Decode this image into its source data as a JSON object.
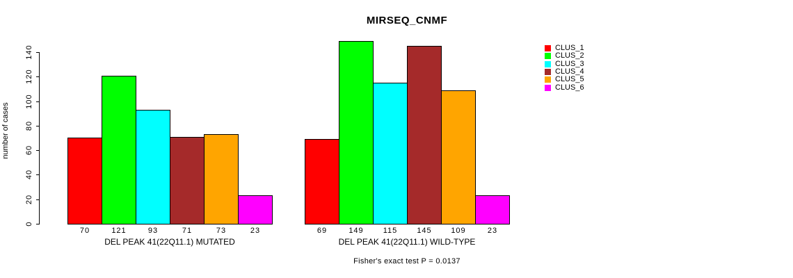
{
  "title": "MIRSEQ_CNMF",
  "footer": "Fisher's exact test P = 0.0137",
  "chart_data": {
    "type": "bar",
    "title": "MIRSEQ_CNMF",
    "ylabel": "number of cases",
    "xlabel": "",
    "ylim": [
      0,
      140
    ],
    "yticks": [
      0,
      20,
      40,
      60,
      80,
      100,
      120,
      140
    ],
    "grid": false,
    "legend_position": "right",
    "annotation": "Fisher's exact test P = 0.0137",
    "legend": [
      {
        "label": "CLUS_1",
        "color": "#FF0000"
      },
      {
        "label": "CLUS_2",
        "color": "#00FF00"
      },
      {
        "label": "CLUS_3",
        "color": "#00FFFF"
      },
      {
        "label": "CLUS_4",
        "color": "#A52A2A"
      },
      {
        "label": "CLUS_5",
        "color": "#FFA500"
      },
      {
        "label": "CLUS_6",
        "color": "#FF00FF"
      }
    ],
    "series_names": [
      "CLUS_1",
      "CLUS_2",
      "CLUS_3",
      "CLUS_4",
      "CLUS_5",
      "CLUS_6"
    ],
    "groups": [
      {
        "label": "DEL PEAK 41(22Q11.1) MUTATED",
        "values": [
          70,
          121,
          93,
          71,
          73,
          23
        ]
      },
      {
        "label": "DEL PEAK 41(22Q11.1) WILD-TYPE",
        "values": [
          69,
          149,
          115,
          145,
          109,
          23
        ]
      }
    ]
  }
}
